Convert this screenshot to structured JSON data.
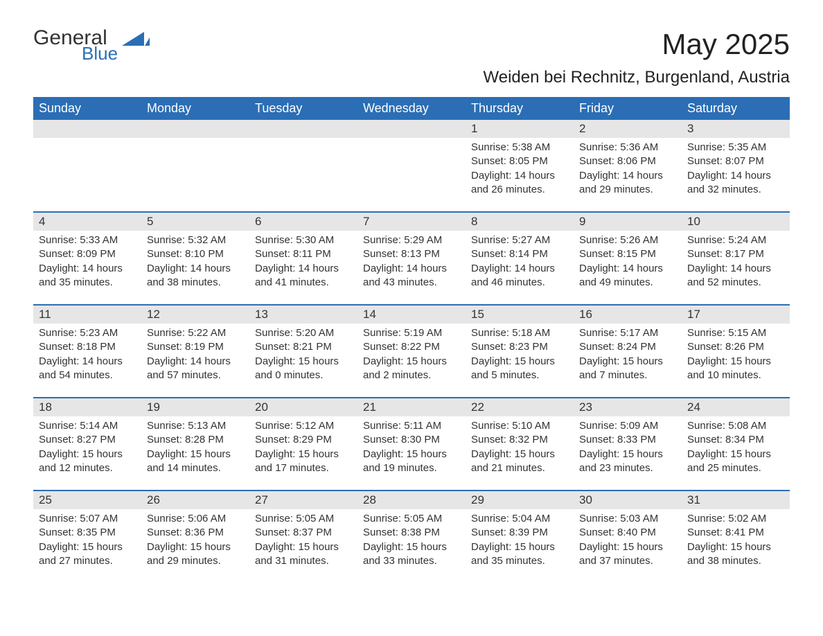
{
  "logo": {
    "main": "General",
    "sub": "Blue",
    "main_color": "#333333",
    "sub_color": "#2b6eb5"
  },
  "title": "May 2025",
  "location": "Weiden bei Rechnitz, Burgenland, Austria",
  "colors": {
    "header_bg": "#2b6eb5",
    "header_text": "#ffffff",
    "numbar_bg": "#e6e6e6",
    "rule": "#2b6eb5",
    "body_text": "#333333",
    "page_bg": "#ffffff"
  },
  "fonts": {
    "family": "Arial",
    "title_pt": 42,
    "location_pt": 24,
    "weekday_pt": 18,
    "daynum_pt": 17,
    "body_pt": 15
  },
  "weekdays": [
    "Sunday",
    "Monday",
    "Tuesday",
    "Wednesday",
    "Thursday",
    "Friday",
    "Saturday"
  ],
  "weeks": [
    [
      null,
      null,
      null,
      null,
      {
        "n": "1",
        "sr": "Sunrise: 5:38 AM",
        "ss": "Sunset: 8:05 PM",
        "d1": "Daylight: 14 hours",
        "d2": "and 26 minutes."
      },
      {
        "n": "2",
        "sr": "Sunrise: 5:36 AM",
        "ss": "Sunset: 8:06 PM",
        "d1": "Daylight: 14 hours",
        "d2": "and 29 minutes."
      },
      {
        "n": "3",
        "sr": "Sunrise: 5:35 AM",
        "ss": "Sunset: 8:07 PM",
        "d1": "Daylight: 14 hours",
        "d2": "and 32 minutes."
      }
    ],
    [
      {
        "n": "4",
        "sr": "Sunrise: 5:33 AM",
        "ss": "Sunset: 8:09 PM",
        "d1": "Daylight: 14 hours",
        "d2": "and 35 minutes."
      },
      {
        "n": "5",
        "sr": "Sunrise: 5:32 AM",
        "ss": "Sunset: 8:10 PM",
        "d1": "Daylight: 14 hours",
        "d2": "and 38 minutes."
      },
      {
        "n": "6",
        "sr": "Sunrise: 5:30 AM",
        "ss": "Sunset: 8:11 PM",
        "d1": "Daylight: 14 hours",
        "d2": "and 41 minutes."
      },
      {
        "n": "7",
        "sr": "Sunrise: 5:29 AM",
        "ss": "Sunset: 8:13 PM",
        "d1": "Daylight: 14 hours",
        "d2": "and 43 minutes."
      },
      {
        "n": "8",
        "sr": "Sunrise: 5:27 AM",
        "ss": "Sunset: 8:14 PM",
        "d1": "Daylight: 14 hours",
        "d2": "and 46 minutes."
      },
      {
        "n": "9",
        "sr": "Sunrise: 5:26 AM",
        "ss": "Sunset: 8:15 PM",
        "d1": "Daylight: 14 hours",
        "d2": "and 49 minutes."
      },
      {
        "n": "10",
        "sr": "Sunrise: 5:24 AM",
        "ss": "Sunset: 8:17 PM",
        "d1": "Daylight: 14 hours",
        "d2": "and 52 minutes."
      }
    ],
    [
      {
        "n": "11",
        "sr": "Sunrise: 5:23 AM",
        "ss": "Sunset: 8:18 PM",
        "d1": "Daylight: 14 hours",
        "d2": "and 54 minutes."
      },
      {
        "n": "12",
        "sr": "Sunrise: 5:22 AM",
        "ss": "Sunset: 8:19 PM",
        "d1": "Daylight: 14 hours",
        "d2": "and 57 minutes."
      },
      {
        "n": "13",
        "sr": "Sunrise: 5:20 AM",
        "ss": "Sunset: 8:21 PM",
        "d1": "Daylight: 15 hours",
        "d2": "and 0 minutes."
      },
      {
        "n": "14",
        "sr": "Sunrise: 5:19 AM",
        "ss": "Sunset: 8:22 PM",
        "d1": "Daylight: 15 hours",
        "d2": "and 2 minutes."
      },
      {
        "n": "15",
        "sr": "Sunrise: 5:18 AM",
        "ss": "Sunset: 8:23 PM",
        "d1": "Daylight: 15 hours",
        "d2": "and 5 minutes."
      },
      {
        "n": "16",
        "sr": "Sunrise: 5:17 AM",
        "ss": "Sunset: 8:24 PM",
        "d1": "Daylight: 15 hours",
        "d2": "and 7 minutes."
      },
      {
        "n": "17",
        "sr": "Sunrise: 5:15 AM",
        "ss": "Sunset: 8:26 PM",
        "d1": "Daylight: 15 hours",
        "d2": "and 10 minutes."
      }
    ],
    [
      {
        "n": "18",
        "sr": "Sunrise: 5:14 AM",
        "ss": "Sunset: 8:27 PM",
        "d1": "Daylight: 15 hours",
        "d2": "and 12 minutes."
      },
      {
        "n": "19",
        "sr": "Sunrise: 5:13 AM",
        "ss": "Sunset: 8:28 PM",
        "d1": "Daylight: 15 hours",
        "d2": "and 14 minutes."
      },
      {
        "n": "20",
        "sr": "Sunrise: 5:12 AM",
        "ss": "Sunset: 8:29 PM",
        "d1": "Daylight: 15 hours",
        "d2": "and 17 minutes."
      },
      {
        "n": "21",
        "sr": "Sunrise: 5:11 AM",
        "ss": "Sunset: 8:30 PM",
        "d1": "Daylight: 15 hours",
        "d2": "and 19 minutes."
      },
      {
        "n": "22",
        "sr": "Sunrise: 5:10 AM",
        "ss": "Sunset: 8:32 PM",
        "d1": "Daylight: 15 hours",
        "d2": "and 21 minutes."
      },
      {
        "n": "23",
        "sr": "Sunrise: 5:09 AM",
        "ss": "Sunset: 8:33 PM",
        "d1": "Daylight: 15 hours",
        "d2": "and 23 minutes."
      },
      {
        "n": "24",
        "sr": "Sunrise: 5:08 AM",
        "ss": "Sunset: 8:34 PM",
        "d1": "Daylight: 15 hours",
        "d2": "and 25 minutes."
      }
    ],
    [
      {
        "n": "25",
        "sr": "Sunrise: 5:07 AM",
        "ss": "Sunset: 8:35 PM",
        "d1": "Daylight: 15 hours",
        "d2": "and 27 minutes."
      },
      {
        "n": "26",
        "sr": "Sunrise: 5:06 AM",
        "ss": "Sunset: 8:36 PM",
        "d1": "Daylight: 15 hours",
        "d2": "and 29 minutes."
      },
      {
        "n": "27",
        "sr": "Sunrise: 5:05 AM",
        "ss": "Sunset: 8:37 PM",
        "d1": "Daylight: 15 hours",
        "d2": "and 31 minutes."
      },
      {
        "n": "28",
        "sr": "Sunrise: 5:05 AM",
        "ss": "Sunset: 8:38 PM",
        "d1": "Daylight: 15 hours",
        "d2": "and 33 minutes."
      },
      {
        "n": "29",
        "sr": "Sunrise: 5:04 AM",
        "ss": "Sunset: 8:39 PM",
        "d1": "Daylight: 15 hours",
        "d2": "and 35 minutes."
      },
      {
        "n": "30",
        "sr": "Sunrise: 5:03 AM",
        "ss": "Sunset: 8:40 PM",
        "d1": "Daylight: 15 hours",
        "d2": "and 37 minutes."
      },
      {
        "n": "31",
        "sr": "Sunrise: 5:02 AM",
        "ss": "Sunset: 8:41 PM",
        "d1": "Daylight: 15 hours",
        "d2": "and 38 minutes."
      }
    ]
  ]
}
